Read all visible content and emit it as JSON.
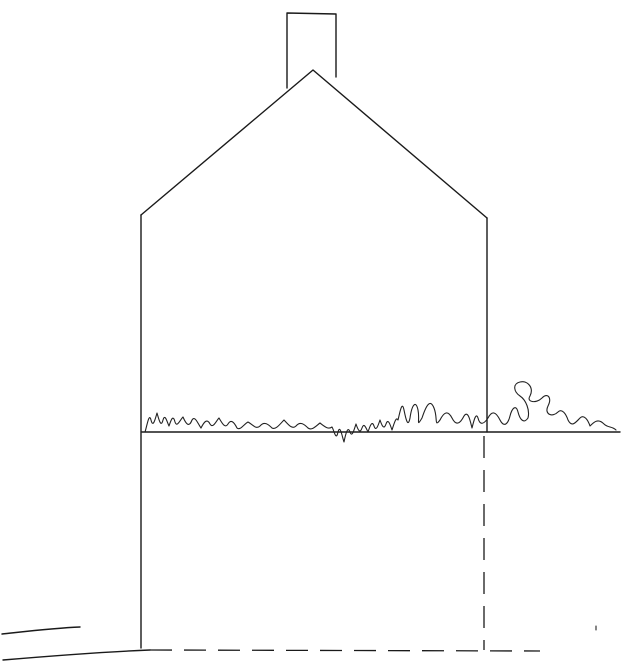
{
  "drawing": {
    "background_color": "#ffffff",
    "ink_color": "#1a1a1a"
  }
}
